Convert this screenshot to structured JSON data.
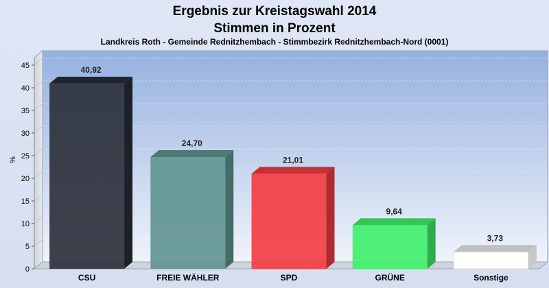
{
  "chart_data": {
    "type": "bar",
    "title": "Ergebnis zur Kreistagswahl 2014",
    "subtitle_line2": "Stimmen in Prozent",
    "subtitle": "Landkreis Roth - Gemeinde Rednitzhembach - Stimmbezirk Rednitzhembach-Nord (0001)",
    "ylabel": "%",
    "xlabel": "",
    "ylim": [
      0,
      45
    ],
    "yticks": [
      0,
      5,
      10,
      15,
      20,
      25,
      30,
      35,
      40,
      45
    ],
    "grid": true,
    "categories": [
      "CSU",
      "FREIE WÄHLER",
      "SPD",
      "GRÜNE",
      "Sonstige"
    ],
    "values": [
      40.92,
      24.7,
      21.01,
      9.64,
      3.73
    ],
    "value_labels": [
      "40,92",
      "24,70",
      "21,01",
      "9,64",
      "3,73"
    ],
    "colors": [
      "#2a2d38",
      "#5f9490",
      "#f43a40",
      "#3ef06a",
      "#ffffff"
    ]
  }
}
